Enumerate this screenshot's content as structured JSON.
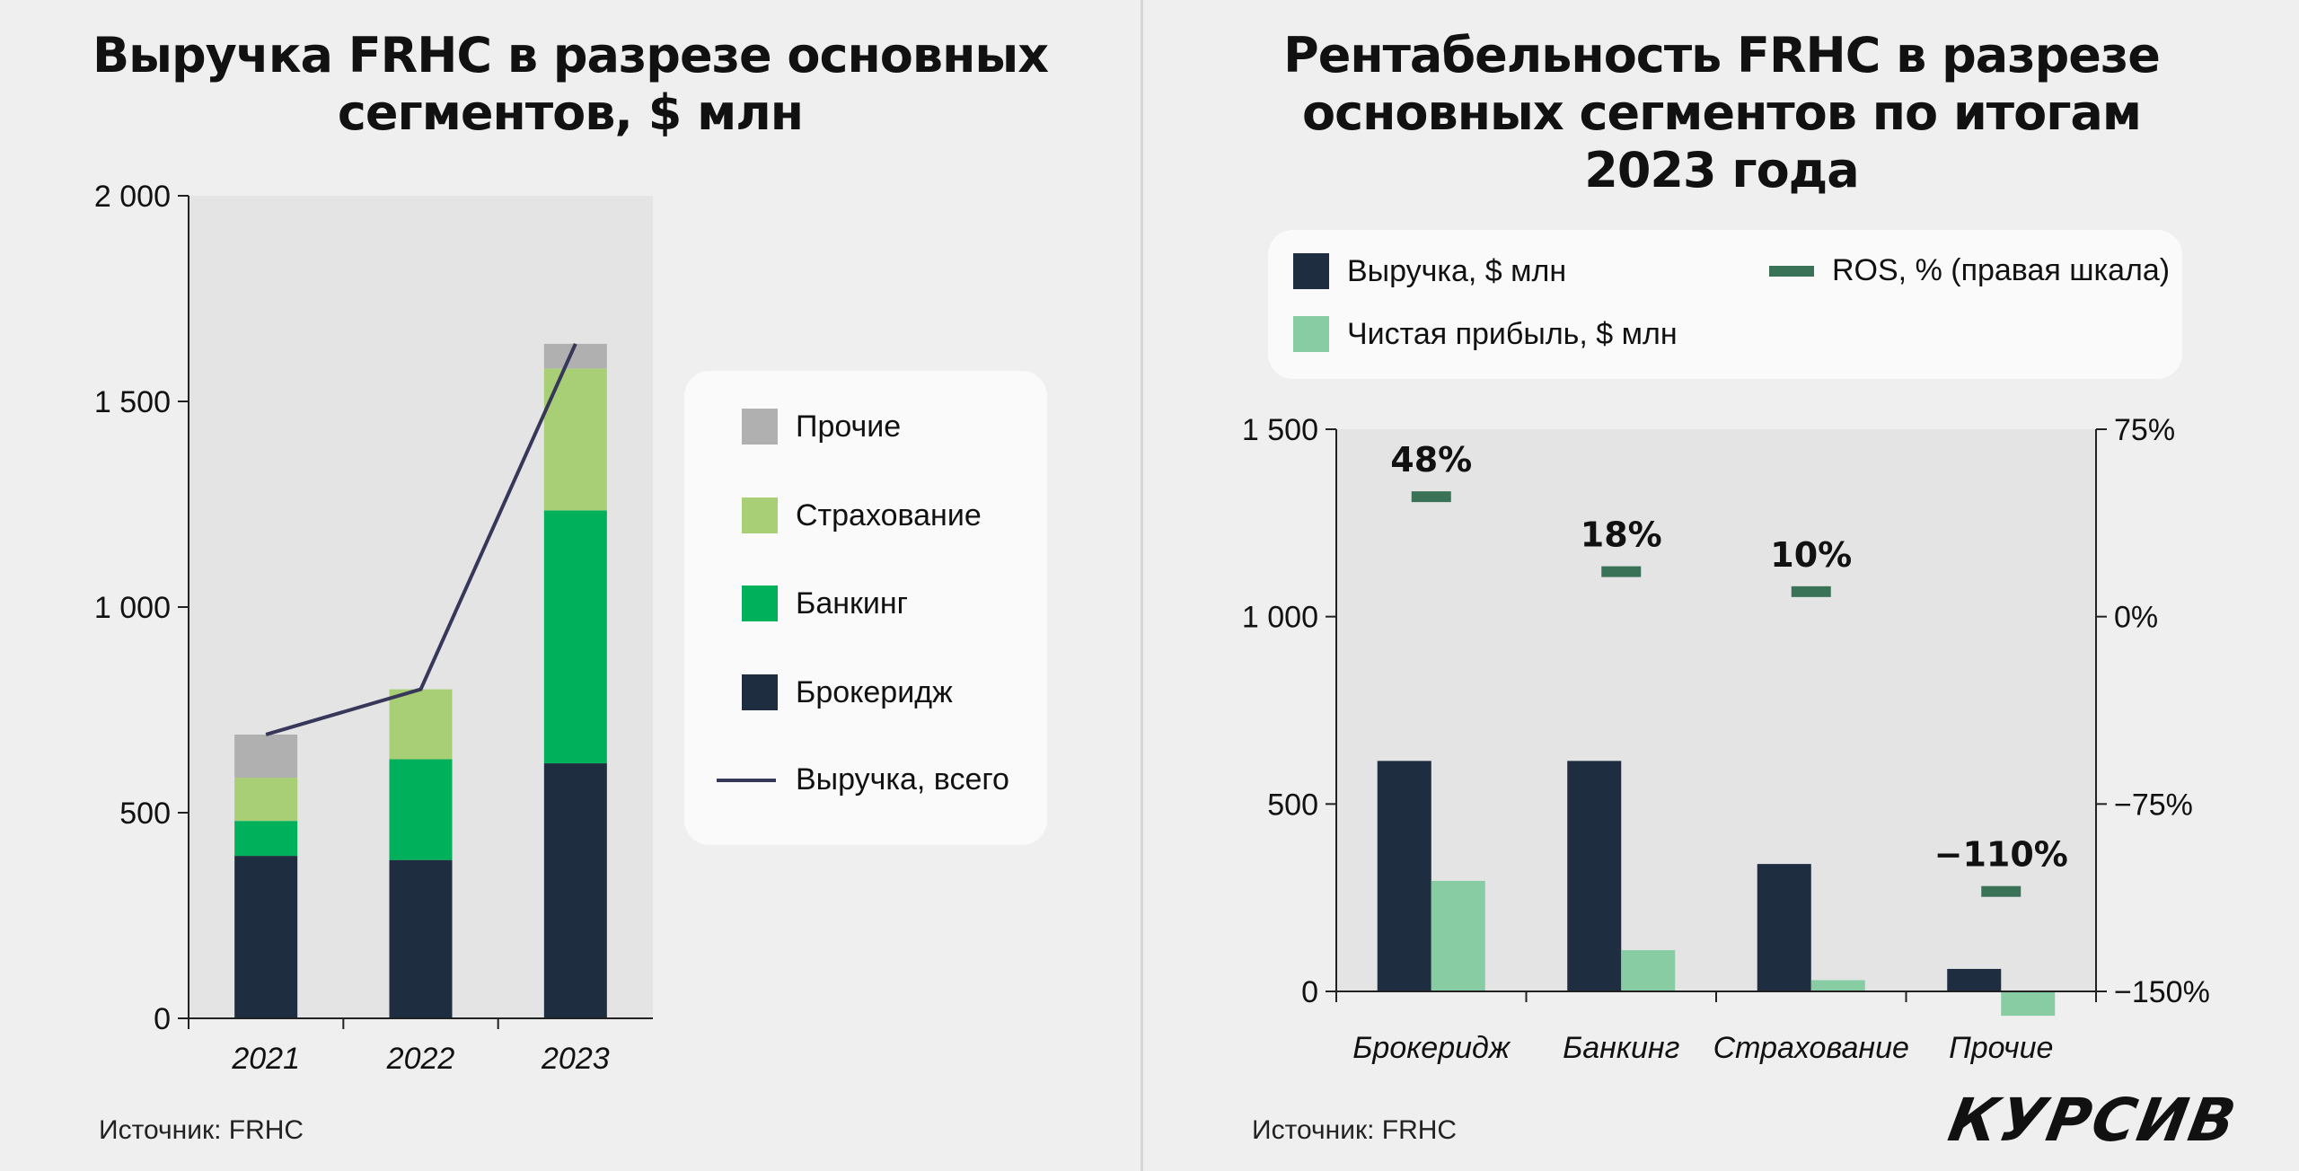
{
  "chart_data": [
    {
      "type": "bar",
      "stacked": true,
      "title": "Выручка FRHC в разрезе основных сегментов, $ млн",
      "categories": [
        "2021",
        "2022",
        "2023"
      ],
      "series": [
        {
          "name": "Брокеридж",
          "values": [
            395,
            385,
            620
          ],
          "color": "#1f2d40"
        },
        {
          "name": "Банкинг",
          "values": [
            85,
            245,
            615
          ],
          "color": "#00b05a"
        },
        {
          "name": "Страхование",
          "values": [
            105,
            170,
            345
          ],
          "color": "#a9cf76"
        },
        {
          "name": "Прочие",
          "values": [
            105,
            0,
            60
          ],
          "color": "#b0b0b0"
        }
      ],
      "line_series": {
        "name": "Выручка, всего",
        "values": [
          690,
          800,
          1640
        ],
        "color": "#37375a"
      },
      "ylim": [
        0,
        2000
      ],
      "yticks": [
        0,
        500,
        1000,
        1500,
        2000
      ],
      "ytick_labels": [
        "0",
        "500",
        "1 000",
        "1 500",
        "2 000"
      ],
      "legend_placement": "right",
      "grid": false
    },
    {
      "type": "bar",
      "title": "Рентабельность FRHC в разрезе основных сегментов по итогам 2023 года",
      "categories": [
        "Брокеридж",
        "Банкинг",
        "Страхование",
        "Прочие"
      ],
      "series": [
        {
          "name": "Выручка, $ млн",
          "values": [
            615,
            615,
            340,
            60
          ],
          "color": "#1f2d40"
        },
        {
          "name": "Чистая прибыль, $ млн",
          "values": [
            295,
            110,
            30,
            -65
          ],
          "color": "#88cca4"
        }
      ],
      "markers": {
        "name": "ROS, % (правая шкала)",
        "values": [
          48,
          18,
          10,
          -110
        ],
        "value_labels": [
          "48%",
          "18%",
          "10%",
          "−110%"
        ],
        "color": "#3a7258"
      },
      "ylim": [
        0,
        1500
      ],
      "yticks": [
        0,
        500,
        1000,
        1500
      ],
      "ytick_labels": [
        "0",
        "500",
        "1 000",
        "1 500"
      ],
      "y2lim": [
        -150,
        75
      ],
      "y2ticks": [
        -150,
        -75,
        0,
        75
      ],
      "y2tick_labels": [
        "−150%",
        "−75%",
        "0%",
        "75%"
      ],
      "legend_placement": "top",
      "grid": false
    }
  ],
  "left": {
    "title": "Выручка FRHC в разрезе основных\nсегментов, $ млн",
    "legend": [
      "Прочие",
      "Страхование",
      "Банкинг",
      "Брокеридж",
      "Выручка, всего"
    ],
    "source": "Источник: FRHC"
  },
  "right": {
    "title": "Рентабельность FRHC в разрезе\nосновных сегментов по итогам\n2023 года",
    "legend": {
      "revenue": "Выручка, $ млн",
      "ros": "ROS, % (правая шкала)",
      "profit": "Чистая прибыль, $ млн"
    },
    "source": "Источник: FRHC"
  },
  "logo": "КУРСИВ",
  "colors": {
    "background": "#efefef",
    "plot_area": "#e4e4e4",
    "legend_bg": "#fafafa"
  }
}
